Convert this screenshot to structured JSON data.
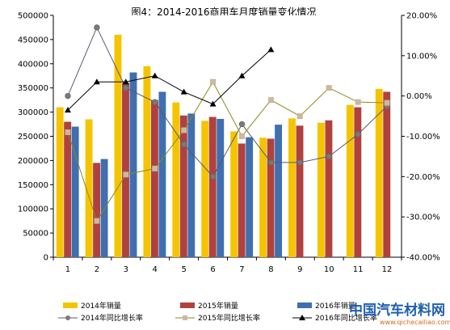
{
  "chart_data": {
    "type": "bar",
    "title": "图4：2014-2016商用车月度销量变化情况",
    "categories": [
      "1",
      "2",
      "3",
      "4",
      "5",
      "6",
      "7",
      "8",
      "9",
      "10",
      "11",
      "12"
    ],
    "ylim_left": [
      0,
      500000
    ],
    "left_ticks": [
      "0",
      "50000",
      "100000",
      "150000",
      "200000",
      "250000",
      "300000",
      "350000",
      "400000",
      "450000",
      "500000"
    ],
    "ylim_right": [
      -40,
      20
    ],
    "right_ticks": [
      "-40.00%",
      "-30.00%",
      "-20.00%",
      "-10.00%",
      "0.00%",
      "10.00%",
      "20.00%"
    ],
    "bar_series": [
      {
        "name": "2014年销量",
        "color": "#f5c400",
        "values": [
          310000,
          285000,
          460000,
          395000,
          320000,
          282000,
          260000,
          247000,
          287000,
          278000,
          315000,
          348000
        ]
      },
      {
        "name": "2015年销量",
        "color": "#b0413e",
        "values": [
          280000,
          195000,
          360000,
          325000,
          293000,
          290000,
          235000,
          245000,
          272000,
          283000,
          310000,
          342000
        ]
      },
      {
        "name": "2016年销量",
        "color": "#3f6faf",
        "values": [
          270000,
          203000,
          382000,
          342000,
          297000,
          286000,
          248000,
          274000,
          null,
          null,
          null,
          null
        ]
      }
    ],
    "line_series": [
      {
        "name": "2014年同比增长率",
        "color": "#595971",
        "marker": "circle",
        "values": [
          0,
          17,
          2,
          -1.5,
          -12,
          -20,
          -7,
          -16.5,
          -16.5,
          -15,
          -9.5,
          -2.5
        ]
      },
      {
        "name": "2015年同比增长率",
        "color": "#8a8a1a",
        "marker": "square",
        "values": [
          -9,
          -31,
          -19.5,
          -18,
          -8.5,
          3.5,
          -10,
          -1,
          -5,
          2,
          -1.5,
          -1.7
        ]
      },
      {
        "name": "2016年同比增长率",
        "color": "#000000",
        "marker": "triangle",
        "values": [
          -3.5,
          3.5,
          3.5,
          5,
          1,
          -2,
          5,
          11.5,
          null,
          null,
          null,
          null
        ]
      }
    ]
  },
  "watermark": {
    "logo_text": "中国汽车材料网",
    "url": "www.qichecailiao.com"
  }
}
